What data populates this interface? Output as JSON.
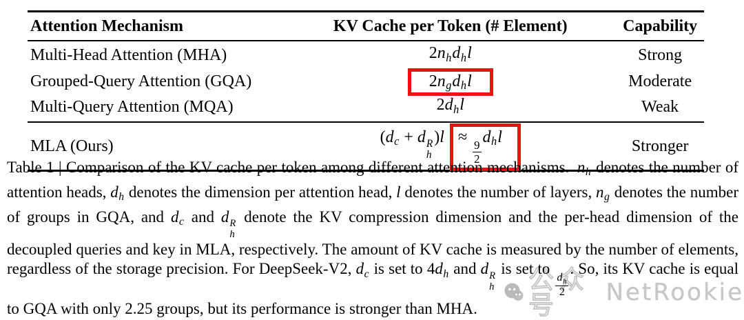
{
  "table": {
    "headers": [
      "Attention Mechanism",
      "KV Cache per Token (# Element)",
      "Capability"
    ],
    "rows": [
      {
        "mechanism": "Multi-Head Attention (MHA)",
        "capability": "Strong",
        "formula": [
          {
            "k": "t",
            "x": "2"
          },
          {
            "k": "v",
            "x": "n"
          },
          {
            "k": "s",
            "x": "h"
          },
          {
            "k": "v",
            "x": "d"
          },
          {
            "k": "s",
            "x": "h"
          },
          {
            "k": "v",
            "x": "l"
          }
        ]
      },
      {
        "mechanism": "Grouped-Query Attention (GQA)",
        "capability": "Moderate",
        "formula": [
          {
            "k": "t",
            "x": "2"
          },
          {
            "k": "v",
            "x": "n"
          },
          {
            "k": "s",
            "x": "g"
          },
          {
            "k": "v",
            "x": "d"
          },
          {
            "k": "s",
            "x": "h"
          },
          {
            "k": "v",
            "x": "l"
          }
        ]
      },
      {
        "mechanism": "Multi-Query Attention (MQA)",
        "capability": "Weak",
        "formula": [
          {
            "k": "t",
            "x": "2"
          },
          {
            "k": "v",
            "x": "d"
          },
          {
            "k": "s",
            "x": "h"
          },
          {
            "k": "v",
            "x": "l"
          }
        ]
      }
    ],
    "mla_row": {
      "mechanism": "MLA (Ours)",
      "capability": "Stronger",
      "formula_plain": [
        {
          "k": "t",
          "x": "("
        },
        {
          "k": "v",
          "x": "d"
        },
        {
          "k": "s",
          "x": "c"
        },
        {
          "k": "t",
          "x": " + "
        },
        {
          "k": "v",
          "x": "d"
        },
        {
          "k": "ss",
          "sub": "h",
          "sup": "R"
        },
        {
          "k": "t",
          "x": ")"
        },
        {
          "k": "v",
          "x": "l"
        },
        {
          "k": "t",
          "x": " "
        }
      ],
      "formula_boxed": [
        {
          "k": "t",
          "x": "≈ "
        },
        {
          "k": "f",
          "num": [
            {
              "k": "t",
              "x": "9"
            }
          ],
          "den": [
            {
              "k": "t",
              "x": "2"
            }
          ]
        },
        {
          "k": "v",
          "x": "d"
        },
        {
          "k": "s",
          "x": "h"
        },
        {
          "k": "v",
          "x": "l"
        }
      ]
    }
  },
  "caption": {
    "segments": [
      {
        "text": "Table 1 | Comparison of the KV cache per token among different attention mechanisms. "
      },
      {
        "math": [
          {
            "k": "v",
            "x": "n"
          },
          {
            "k": "s",
            "x": "h"
          }
        ]
      },
      {
        "text": " denotes the number of attention heads, "
      },
      {
        "math": [
          {
            "k": "v",
            "x": "d"
          },
          {
            "k": "s",
            "x": "h"
          }
        ]
      },
      {
        "text": " denotes the dimension per attention head, "
      },
      {
        "math": [
          {
            "k": "v",
            "x": "l"
          }
        ]
      },
      {
        "text": " denotes the number of layers, "
      },
      {
        "math": [
          {
            "k": "v",
            "x": "n"
          },
          {
            "k": "s",
            "x": "g"
          }
        ]
      },
      {
        "text": " denotes the number of groups in GQA, and "
      },
      {
        "math": [
          {
            "k": "v",
            "x": "d"
          },
          {
            "k": "s",
            "x": "c"
          }
        ]
      },
      {
        "text": " and "
      },
      {
        "math": [
          {
            "k": "v",
            "x": "d"
          },
          {
            "k": "ss",
            "sub": "h",
            "sup": "R"
          }
        ]
      },
      {
        "text": " denote the KV compression dimension and the per-head dimension of the decoupled queries and key in MLA, respectively. The amount of KV cache is measured by the number of elements, regardless of the storage precision. For DeepSeek-V2, "
      },
      {
        "math": [
          {
            "k": "v",
            "x": "d"
          },
          {
            "k": "s",
            "x": "c"
          }
        ]
      },
      {
        "text": " is set to "
      },
      {
        "math": [
          {
            "k": "t",
            "x": "4"
          },
          {
            "k": "v",
            "x": "d"
          },
          {
            "k": "s",
            "x": "h"
          }
        ]
      },
      {
        "text": " and "
      },
      {
        "math": [
          {
            "k": "v",
            "x": "d"
          },
          {
            "k": "ss",
            "sub": "h",
            "sup": "R"
          }
        ]
      },
      {
        "text": " is set to "
      },
      {
        "math": [
          {
            "k": "f",
            "num": [
              {
                "k": "v",
                "x": "d"
              },
              {
                "k": "s",
                "x": "h"
              }
            ],
            "den": [
              {
                "k": "t",
                "x": "2"
              }
            ]
          }
        ]
      },
      {
        "text": ". So, its KV cache is equal to GQA with only 2.25 groups, but its performance is stronger than MHA."
      }
    ]
  },
  "watermark": {
    "icon": "wechat-icon",
    "text_cn": "公众号",
    "text_en": "NetRookie"
  },
  "colors": {
    "highlight_box": "#ee1111",
    "text": "#000000",
    "watermark": "#c7c7c7"
  }
}
